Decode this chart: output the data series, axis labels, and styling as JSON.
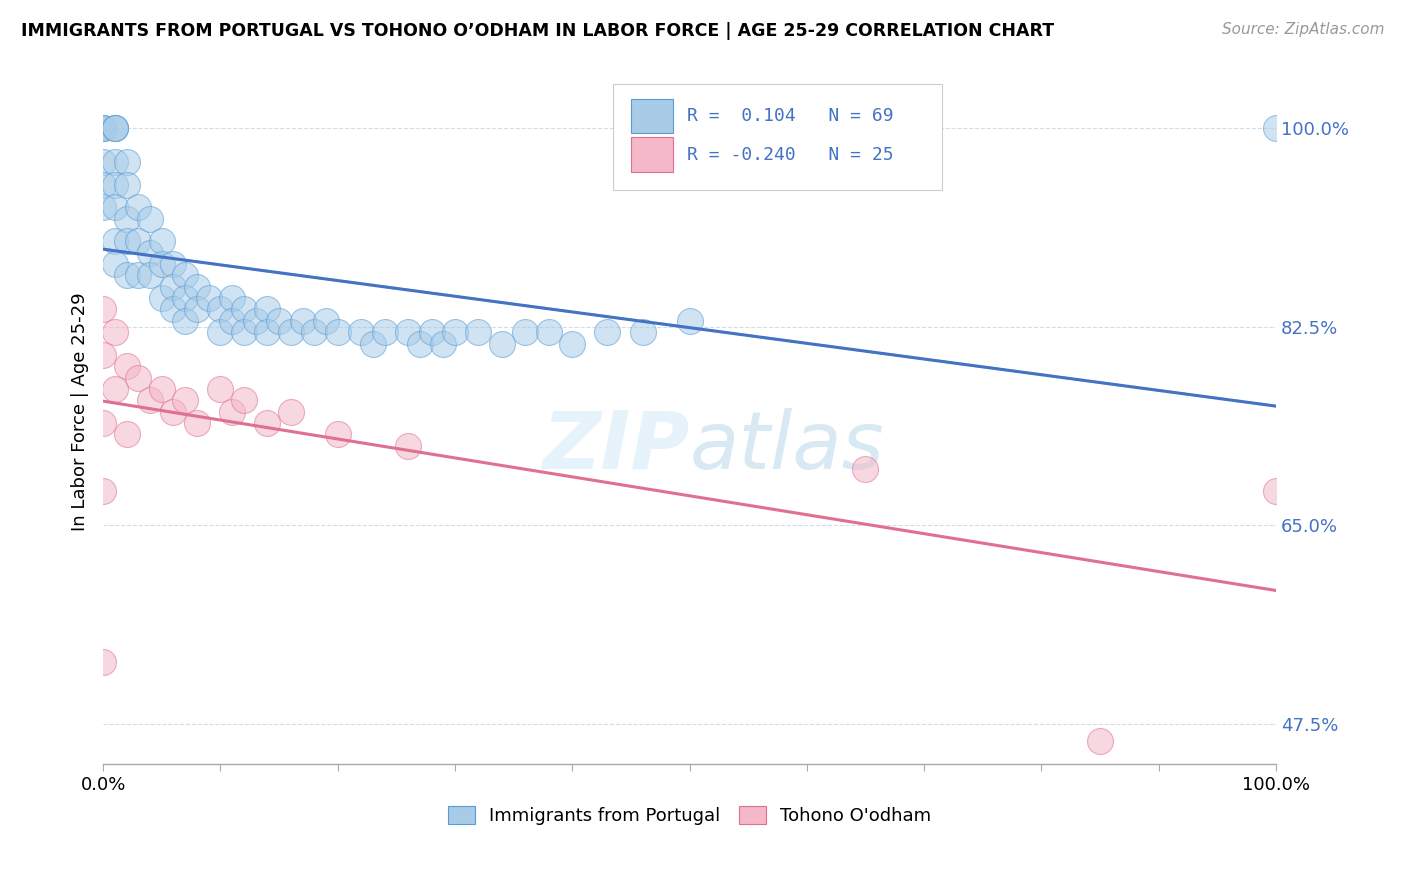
{
  "title": "IMMIGRANTS FROM PORTUGAL VS TOHONO O’ODHAM IN LABOR FORCE | AGE 25-29 CORRELATION CHART",
  "source": "Source: ZipAtlas.com",
  "ylabel": "In Labor Force | Age 25-29",
  "xlim": [
    0.0,
    1.0
  ],
  "ylim": [
    0.44,
    1.06
  ],
  "yticks": [
    0.475,
    0.65,
    0.825,
    1.0
  ],
  "ytick_labels": [
    "47.5%",
    "65.0%",
    "82.5%",
    "100.0%"
  ],
  "xticks": [
    0.0,
    0.1,
    0.2,
    0.3,
    0.4,
    0.5,
    0.6,
    0.7,
    0.8,
    0.9,
    1.0
  ],
  "xtick_edge_labels": [
    "0.0%",
    "100.0%"
  ],
  "r_portugal": 0.104,
  "n_portugal": 69,
  "r_tohono": -0.24,
  "n_tohono": 25,
  "blue_fill": "#a8cce8",
  "blue_edge": "#5b9bd5",
  "pink_fill": "#f4b8c8",
  "pink_edge": "#e07090",
  "blue_line": "#4472c4",
  "pink_line": "#e07090",
  "blue_dash": "#9dc3e0",
  "legend_text_color": "#4472c4",
  "grid_color": "#d0dde8",
  "portugal_x": [
    0.0,
    0.0,
    0.0,
    0.0,
    0.0,
    0.0,
    0.01,
    0.01,
    0.01,
    0.01,
    0.01,
    0.01,
    0.01,
    0.01,
    0.02,
    0.02,
    0.02,
    0.02,
    0.02,
    0.03,
    0.03,
    0.03,
    0.04,
    0.04,
    0.04,
    0.05,
    0.05,
    0.05,
    0.06,
    0.06,
    0.06,
    0.07,
    0.07,
    0.07,
    0.08,
    0.08,
    0.09,
    0.1,
    0.1,
    0.11,
    0.11,
    0.12,
    0.12,
    0.13,
    0.14,
    0.14,
    0.15,
    0.16,
    0.17,
    0.18,
    0.19,
    0.2,
    0.22,
    0.23,
    0.24,
    0.26,
    0.27,
    0.28,
    0.29,
    0.3,
    0.32,
    0.34,
    0.36,
    0.38,
    0.4,
    0.43,
    0.46,
    0.5,
    1.0
  ],
  "portugal_y": [
    1.0,
    1.0,
    1.0,
    0.97,
    0.95,
    0.93,
    1.0,
    1.0,
    1.0,
    0.97,
    0.95,
    0.93,
    0.9,
    0.88,
    0.97,
    0.95,
    0.92,
    0.9,
    0.87,
    0.93,
    0.9,
    0.87,
    0.92,
    0.89,
    0.87,
    0.9,
    0.88,
    0.85,
    0.88,
    0.86,
    0.84,
    0.87,
    0.85,
    0.83,
    0.86,
    0.84,
    0.85,
    0.84,
    0.82,
    0.85,
    0.83,
    0.84,
    0.82,
    0.83,
    0.84,
    0.82,
    0.83,
    0.82,
    0.83,
    0.82,
    0.83,
    0.82,
    0.82,
    0.81,
    0.82,
    0.82,
    0.81,
    0.82,
    0.81,
    0.82,
    0.82,
    0.81,
    0.82,
    0.82,
    0.81,
    0.82,
    0.82,
    0.83,
    1.0
  ],
  "tohono_x": [
    0.0,
    0.0,
    0.0,
    0.0,
    0.01,
    0.01,
    0.02,
    0.02,
    0.03,
    0.04,
    0.05,
    0.06,
    0.07,
    0.08,
    0.1,
    0.11,
    0.12,
    0.14,
    0.16,
    0.2,
    0.26,
    0.65,
    0.85,
    1.0
  ],
  "tohono_y": [
    0.84,
    0.8,
    0.74,
    0.68,
    0.82,
    0.77,
    0.79,
    0.73,
    0.78,
    0.76,
    0.77,
    0.75,
    0.76,
    0.74,
    0.77,
    0.75,
    0.76,
    0.74,
    0.75,
    0.73,
    0.72,
    0.7,
    0.46,
    0.68
  ],
  "tohono_x_low": [
    0.0
  ],
  "tohono_y_low": [
    0.53
  ]
}
